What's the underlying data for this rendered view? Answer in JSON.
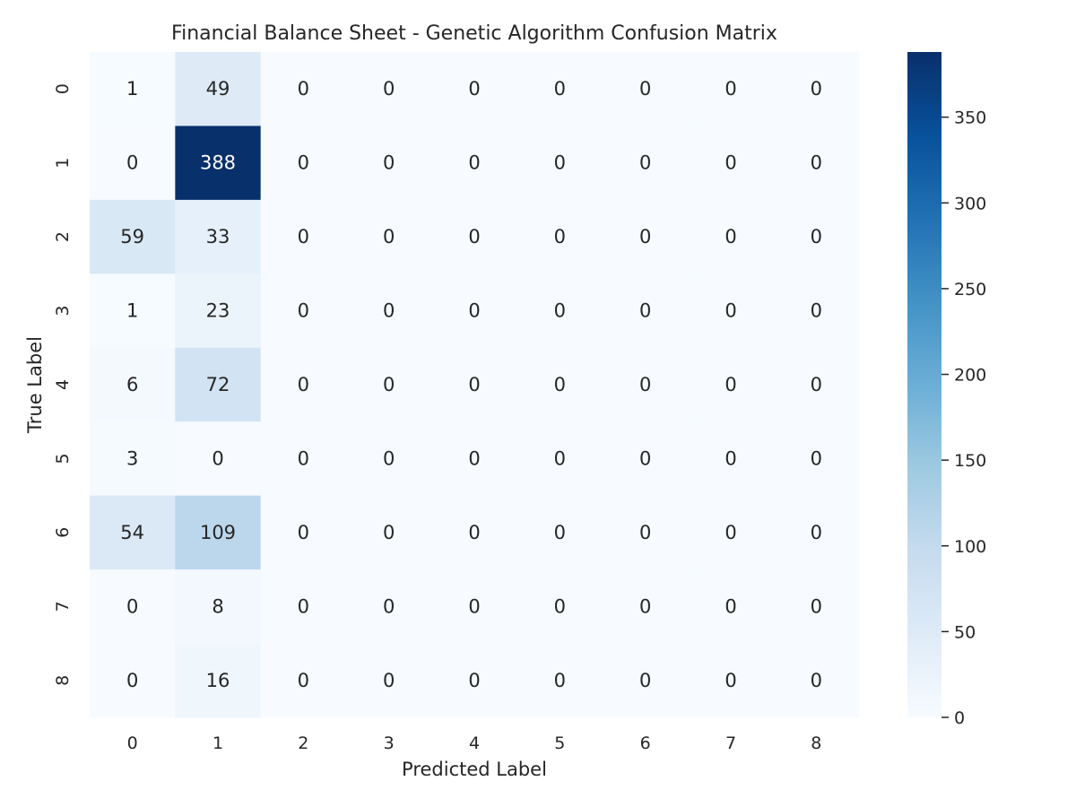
{
  "chart_data": {
    "type": "heatmap",
    "title": "Financial Balance Sheet - Genetic Algorithm Confusion Matrix",
    "xlabel": "Predicted Label",
    "ylabel": "True Label",
    "x_categories": [
      "0",
      "1",
      "2",
      "3",
      "4",
      "5",
      "6",
      "7",
      "8"
    ],
    "y_categories": [
      "0",
      "1",
      "2",
      "3",
      "4",
      "5",
      "6",
      "7",
      "8"
    ],
    "values": [
      [
        1,
        49,
        0,
        0,
        0,
        0,
        0,
        0,
        0
      ],
      [
        0,
        388,
        0,
        0,
        0,
        0,
        0,
        0,
        0
      ],
      [
        59,
        33,
        0,
        0,
        0,
        0,
        0,
        0,
        0
      ],
      [
        1,
        23,
        0,
        0,
        0,
        0,
        0,
        0,
        0
      ],
      [
        6,
        72,
        0,
        0,
        0,
        0,
        0,
        0,
        0
      ],
      [
        3,
        0,
        0,
        0,
        0,
        0,
        0,
        0,
        0
      ],
      [
        54,
        109,
        0,
        0,
        0,
        0,
        0,
        0,
        0
      ],
      [
        0,
        8,
        0,
        0,
        0,
        0,
        0,
        0,
        0
      ],
      [
        0,
        16,
        0,
        0,
        0,
        0,
        0,
        0,
        0
      ]
    ],
    "colormap": "Blues",
    "colormap_stops": [
      "#f7fbff",
      "#deebf7",
      "#c6dbef",
      "#9ecae1",
      "#6baed6",
      "#4292c6",
      "#2171b5",
      "#08519c",
      "#08306b"
    ],
    "colorbar": {
      "range": [
        0,
        388
      ],
      "ticks": [
        0,
        50,
        100,
        150,
        200,
        250,
        300,
        350
      ],
      "tick_labels": [
        "0",
        "50",
        "100",
        "150",
        "200",
        "250",
        "300",
        "350"
      ]
    },
    "grid": false,
    "annotations": true
  }
}
